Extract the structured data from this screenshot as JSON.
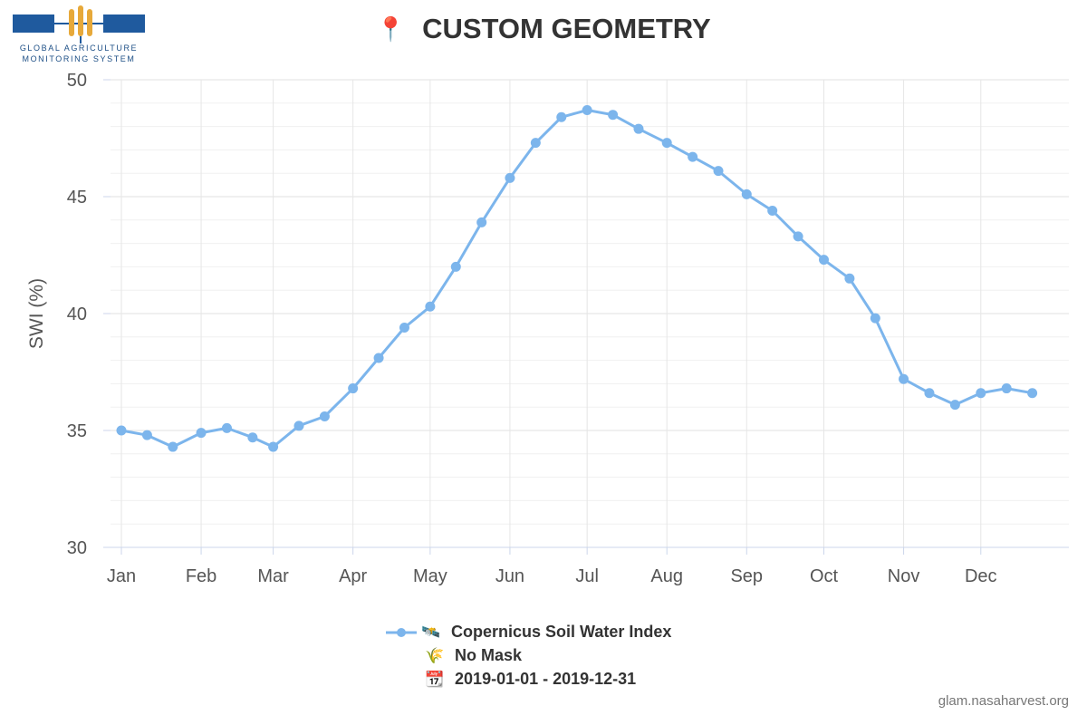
{
  "logo": {
    "line1": "GLOBAL AGRICULTURE",
    "line2": "MONITORING SYSTEM"
  },
  "title": {
    "icon": "📍",
    "text": "CUSTOM GEOMETRY"
  },
  "legend": {
    "series_icon": "🛰️",
    "series_label": "Copernicus Soil Water Index",
    "mask_icon": "🌾",
    "mask_label": "No Mask",
    "date_icon": "📆",
    "date_label": "2019-01-01 - 2019-12-31"
  },
  "credit": "glam.nasaharvest.org",
  "chart_data": {
    "type": "line",
    "title": "CUSTOM GEOMETRY",
    "ylabel": "SWI (%)",
    "xlabel": "",
    "ylim": [
      30,
      50
    ],
    "yticks": [
      30,
      35,
      40,
      45,
      50
    ],
    "xlim": [
      "2019-01-01",
      "2019-12-31"
    ],
    "xticks": [
      {
        "date": "2019-01-01",
        "label": "Jan"
      },
      {
        "date": "2019-02-01",
        "label": "Feb"
      },
      {
        "date": "2019-03-01",
        "label": "Mar"
      },
      {
        "date": "2019-04-01",
        "label": "Apr"
      },
      {
        "date": "2019-05-01",
        "label": "May"
      },
      {
        "date": "2019-06-01",
        "label": "Jun"
      },
      {
        "date": "2019-07-01",
        "label": "Jul"
      },
      {
        "date": "2019-08-01",
        "label": "Aug"
      },
      {
        "date": "2019-09-01",
        "label": "Sep"
      },
      {
        "date": "2019-10-01",
        "label": "Oct"
      },
      {
        "date": "2019-11-01",
        "label": "Nov"
      },
      {
        "date": "2019-12-01",
        "label": "Dec"
      }
    ],
    "grid": true,
    "legend_position": "bottom-center",
    "series": [
      {
        "name": "Copernicus Soil Water Index",
        "color": "#7cb5ec",
        "x": [
          "2019-01-01",
          "2019-01-11",
          "2019-01-21",
          "2019-02-01",
          "2019-02-11",
          "2019-02-21",
          "2019-03-01",
          "2019-03-11",
          "2019-03-21",
          "2019-04-01",
          "2019-04-11",
          "2019-04-21",
          "2019-05-01",
          "2019-05-11",
          "2019-05-21",
          "2019-06-01",
          "2019-06-11",
          "2019-06-21",
          "2019-07-01",
          "2019-07-11",
          "2019-07-21",
          "2019-08-01",
          "2019-08-11",
          "2019-08-21",
          "2019-09-01",
          "2019-09-11",
          "2019-09-21",
          "2019-10-01",
          "2019-10-11",
          "2019-10-21",
          "2019-11-01",
          "2019-11-11",
          "2019-11-21",
          "2019-12-01",
          "2019-12-11",
          "2019-12-21"
        ],
        "y": [
          35.0,
          34.8,
          34.3,
          34.9,
          35.1,
          34.7,
          34.3,
          35.2,
          35.6,
          36.8,
          38.1,
          39.4,
          40.3,
          42.0,
          43.9,
          45.8,
          47.3,
          48.4,
          48.7,
          48.5,
          47.9,
          47.3,
          46.7,
          46.1,
          45.1,
          44.4,
          43.3,
          42.3,
          41.5,
          39.8,
          37.2,
          36.6,
          36.1,
          36.6,
          36.8,
          36.6
        ]
      }
    ]
  }
}
